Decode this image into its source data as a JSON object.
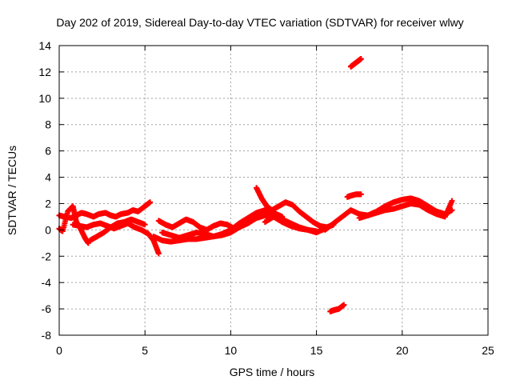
{
  "chart_data": {
    "type": "scatter",
    "title": "Day 202 of 2019, Sidereal Day-to-day VTEC variation (SDTVAR) for receiver wlwy",
    "xlabel": "GPS time / hours",
    "ylabel": "SDTVAR / TECUs",
    "xlim": [
      0,
      25
    ],
    "ylim": [
      -8,
      14
    ],
    "xticks": [
      0,
      5,
      10,
      15,
      20,
      25
    ],
    "yticks": [
      -8,
      -6,
      -4,
      -2,
      0,
      2,
      4,
      6,
      8,
      10,
      12,
      14
    ],
    "grid": true,
    "marker": "plus",
    "color": "#ff0000",
    "series": [
      {
        "name": "track-a",
        "x": [
          0.0,
          0.3,
          0.7,
          1.0,
          1.3,
          1.6,
          2.0,
          2.3,
          2.7,
          3.0,
          3.3,
          3.6,
          4.0,
          4.3,
          4.6,
          5.0,
          5.3
        ],
        "y": [
          1.1,
          1.0,
          0.9,
          1.1,
          1.3,
          1.2,
          1.0,
          1.2,
          1.3,
          1.1,
          1.0,
          1.2,
          1.3,
          1.5,
          1.4,
          1.8,
          2.1
        ]
      },
      {
        "name": "track-b",
        "x": [
          0.0,
          0.2,
          0.5,
          0.8,
          1.0,
          1.2,
          1.5,
          1.7
        ],
        "y": [
          0.1,
          -0.1,
          1.4,
          1.8,
          0.6,
          0.2,
          -0.6,
          -1.0
        ]
      },
      {
        "name": "track-c",
        "x": [
          0.8,
          1.2,
          1.6,
          2.0,
          2.4,
          2.8,
          3.2,
          3.6,
          4.0,
          4.4,
          4.8,
          5.2,
          5.5,
          5.8
        ],
        "y": [
          0.4,
          0.3,
          0.2,
          0.4,
          0.5,
          0.3,
          0.1,
          0.3,
          0.5,
          0.2,
          0.0,
          -0.3,
          -0.8,
          -1.8
        ]
      },
      {
        "name": "track-d",
        "x": [
          1.8,
          2.2,
          2.6,
          3.0,
          3.4,
          3.8,
          4.2,
          4.6,
          5.0
        ],
        "y": [
          -0.8,
          -0.5,
          -0.2,
          0.2,
          0.5,
          0.6,
          0.8,
          0.6,
          0.4
        ]
      },
      {
        "name": "track-e",
        "x": [
          5.5,
          6.0,
          6.5,
          7.0,
          7.5,
          8.0,
          8.5,
          9.0,
          9.5,
          10.0,
          10.5,
          11.0,
          11.5,
          12.0,
          12.5,
          13.0,
          13.5,
          14.0,
          14.5,
          15.0,
          15.5
        ],
        "y": [
          -0.5,
          -0.8,
          -0.9,
          -0.8,
          -0.7,
          -0.7,
          -0.6,
          -0.5,
          -0.4,
          -0.2,
          0.2,
          0.5,
          0.9,
          1.1,
          1.0,
          0.6,
          0.3,
          0.1,
          0.0,
          -0.2,
          0.1
        ]
      },
      {
        "name": "track-f",
        "x": [
          5.8,
          6.2,
          6.6,
          7.0,
          7.4,
          7.8,
          8.2,
          8.6,
          9.0,
          9.4,
          9.8,
          10.2
        ],
        "y": [
          0.7,
          0.4,
          0.2,
          0.5,
          0.8,
          0.6,
          0.2,
          0.0,
          0.3,
          0.5,
          0.4,
          0.1
        ]
      },
      {
        "name": "track-g",
        "x": [
          6.0,
          6.5,
          7.0,
          7.5,
          8.0,
          8.5,
          9.0,
          9.5,
          10.0,
          10.5,
          11.0,
          11.5,
          12.0,
          12.5,
          13.0
        ],
        "y": [
          -0.2,
          -0.4,
          -0.6,
          -0.4,
          -0.2,
          -0.3,
          -0.5,
          -0.3,
          0.0,
          0.5,
          0.9,
          1.3,
          1.5,
          1.3,
          1.0
        ]
      },
      {
        "name": "track-h",
        "x": [
          11.5,
          11.8,
          12.1,
          12.4,
          12.8,
          13.2,
          13.6,
          14.0,
          14.4,
          14.8,
          15.2,
          15.6,
          16.0
        ],
        "y": [
          3.2,
          2.4,
          1.8,
          1.5,
          1.8,
          2.1,
          1.9,
          1.4,
          1.0,
          0.6,
          0.3,
          0.2,
          0.4
        ]
      },
      {
        "name": "track-i",
        "x": [
          12.0,
          12.5,
          13.0,
          13.5,
          14.0,
          14.5,
          15.0
        ],
        "y": [
          0.6,
          1.0,
          0.8,
          0.5,
          0.2,
          0.0,
          -0.1
        ]
      },
      {
        "name": "track-j",
        "x": [
          15.5,
          16.0,
          16.5,
          17.0,
          17.5,
          18.0,
          18.5,
          19.0,
          19.5,
          20.0,
          20.5,
          21.0,
          21.5,
          22.0,
          22.5,
          22.9
        ],
        "y": [
          0.0,
          0.5,
          1.0,
          1.5,
          1.2,
          1.1,
          1.4,
          1.8,
          2.1,
          2.3,
          2.4,
          2.2,
          1.8,
          1.4,
          1.2,
          1.5
        ]
      },
      {
        "name": "track-k",
        "x": [
          17.5,
          18.0,
          18.5,
          19.0,
          19.5,
          20.0,
          20.5,
          21.0,
          21.5,
          22.0,
          22.5,
          22.9
        ],
        "y": [
          0.9,
          1.1,
          1.3,
          1.5,
          1.6,
          1.8,
          2.0,
          1.9,
          1.5,
          1.2,
          1.0,
          2.2
        ]
      },
      {
        "name": "track-l",
        "x": [
          16.8,
          17.0,
          17.3,
          17.6
        ],
        "y": [
          2.5,
          2.6,
          2.7,
          2.7
        ]
      },
      {
        "name": "track-m",
        "x": [
          17.0,
          17.2,
          17.4,
          17.6
        ],
        "y": [
          12.4,
          12.6,
          12.8,
          13.0
        ]
      },
      {
        "name": "track-n",
        "x": [
          15.8,
          16.0,
          16.3,
          16.6
        ],
        "y": [
          -6.2,
          -6.1,
          -6.0,
          -5.7
        ]
      }
    ]
  }
}
